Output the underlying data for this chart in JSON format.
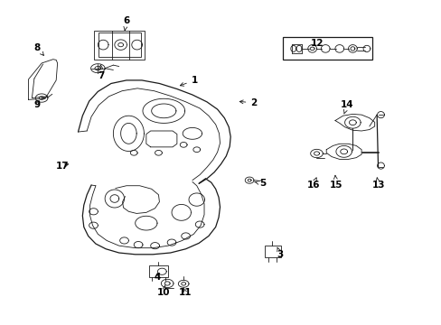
{
  "background_color": "#ffffff",
  "line_color": "#1a1a1a",
  "fig_width": 4.89,
  "fig_height": 3.6,
  "dpi": 100,
  "labels": {
    "1": {
      "lpos": [
        0.44,
        0.755
      ],
      "tpos": [
        0.4,
        0.735
      ]
    },
    "2": {
      "lpos": [
        0.575,
        0.685
      ],
      "tpos": [
        0.535,
        0.69
      ]
    },
    "3": {
      "lpos": [
        0.635,
        0.215
      ],
      "tpos": [
        0.628,
        0.238
      ]
    },
    "4": {
      "lpos": [
        0.355,
        0.145
      ],
      "tpos": [
        0.353,
        0.165
      ]
    },
    "5": {
      "lpos": [
        0.595,
        0.435
      ],
      "tpos": [
        0.576,
        0.44
      ]
    },
    "6": {
      "lpos": [
        0.285,
        0.94
      ],
      "tpos": [
        0.28,
        0.9
      ]
    },
    "7": {
      "lpos": [
        0.228,
        0.77
      ],
      "tpos": [
        0.226,
        0.805
      ]
    },
    "8": {
      "lpos": [
        0.082,
        0.855
      ],
      "tpos": [
        0.098,
        0.83
      ]
    },
    "9": {
      "lpos": [
        0.082,
        0.68
      ],
      "tpos": [
        0.09,
        0.7
      ]
    },
    "10": {
      "lpos": [
        0.37,
        0.098
      ],
      "tpos": [
        0.373,
        0.12
      ]
    },
    "11": {
      "lpos": [
        0.418,
        0.098
      ],
      "tpos": [
        0.412,
        0.118
      ]
    },
    "12": {
      "lpos": [
        0.72,
        0.87
      ],
      "tpos": [
        0.72,
        0.865
      ]
    },
    "13": {
      "lpos": [
        0.858,
        0.43
      ],
      "tpos": [
        0.855,
        0.455
      ]
    },
    "14": {
      "lpos": [
        0.788,
        0.68
      ],
      "tpos": [
        0.78,
        0.65
      ]
    },
    "15": {
      "lpos": [
        0.762,
        0.43
      ],
      "tpos": [
        0.76,
        0.462
      ]
    },
    "16": {
      "lpos": [
        0.71,
        0.43
      ],
      "tpos": [
        0.718,
        0.455
      ]
    },
    "17": {
      "lpos": [
        0.14,
        0.49
      ],
      "tpos": [
        0.16,
        0.498
      ]
    }
  }
}
